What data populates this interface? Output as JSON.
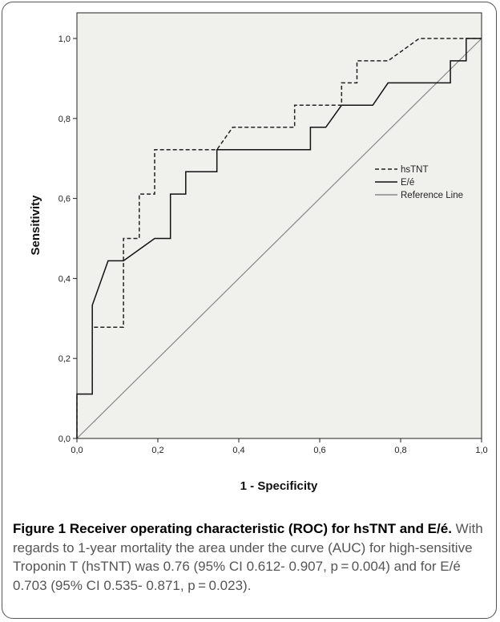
{
  "chart_data": {
    "type": "line",
    "title": "",
    "xlabel": "1 - Specificity",
    "ylabel": "Sensitivity",
    "xlim": [
      0,
      1
    ],
    "ylim": [
      0,
      1
    ],
    "x_ticks": [
      "0,0",
      "0,2",
      "0,4",
      "0,6",
      "0,8",
      "1,0"
    ],
    "y_ticks": [
      "0,0",
      "0,2",
      "0,4",
      "0,6",
      "0,8",
      "1,0"
    ],
    "grid": false,
    "legend_position": "right",
    "series": [
      {
        "name": "hsTNT",
        "style": "dashed",
        "color": "#222222",
        "points": [
          [
            0,
            0
          ],
          [
            0,
            0.111
          ],
          [
            0.038,
            0.111
          ],
          [
            0.038,
            0.278
          ],
          [
            0.115,
            0.278
          ],
          [
            0.115,
            0.5
          ],
          [
            0.154,
            0.5
          ],
          [
            0.154,
            0.611
          ],
          [
            0.192,
            0.611
          ],
          [
            0.192,
            0.722
          ],
          [
            0.346,
            0.722
          ],
          [
            0.385,
            0.778
          ],
          [
            0.538,
            0.778
          ],
          [
            0.538,
            0.833
          ],
          [
            0.654,
            0.833
          ],
          [
            0.654,
            0.889
          ],
          [
            0.692,
            0.889
          ],
          [
            0.692,
            0.944
          ],
          [
            0.769,
            0.944
          ],
          [
            0.846,
            1.0
          ],
          [
            1.0,
            1.0
          ]
        ]
      },
      {
        "name": "E/é",
        "style": "solid",
        "color": "#111111",
        "points": [
          [
            0,
            0
          ],
          [
            0,
            0.111
          ],
          [
            0.038,
            0.111
          ],
          [
            0.038,
            0.333
          ],
          [
            0.077,
            0.444
          ],
          [
            0.115,
            0.444
          ],
          [
            0.192,
            0.5
          ],
          [
            0.231,
            0.5
          ],
          [
            0.231,
            0.611
          ],
          [
            0.269,
            0.611
          ],
          [
            0.269,
            0.667
          ],
          [
            0.346,
            0.667
          ],
          [
            0.346,
            0.722
          ],
          [
            0.577,
            0.722
          ],
          [
            0.577,
            0.778
          ],
          [
            0.615,
            0.778
          ],
          [
            0.654,
            0.833
          ],
          [
            0.731,
            0.833
          ],
          [
            0.769,
            0.889
          ],
          [
            0.923,
            0.889
          ],
          [
            0.923,
            0.944
          ],
          [
            0.962,
            0.944
          ],
          [
            0.962,
            1.0
          ],
          [
            1.0,
            1.0
          ]
        ]
      },
      {
        "name": "Reference Line",
        "style": "solid",
        "color": "#888888",
        "points": [
          [
            0,
            0
          ],
          [
            1,
            1
          ]
        ]
      }
    ]
  },
  "caption": {
    "title": "Figure 1 Receiver operating characteristic (ROC) for hsTNT and E/é.",
    "body": " With regards to 1-year mortality the area under the curve (AUC) for high-sensitive Troponin T (hsTNT) was 0.76 (95% CI 0.612- 0.907, p = 0.004) and for E/é 0.703 (95% CI 0.535- 0.871, p = 0.023)."
  }
}
